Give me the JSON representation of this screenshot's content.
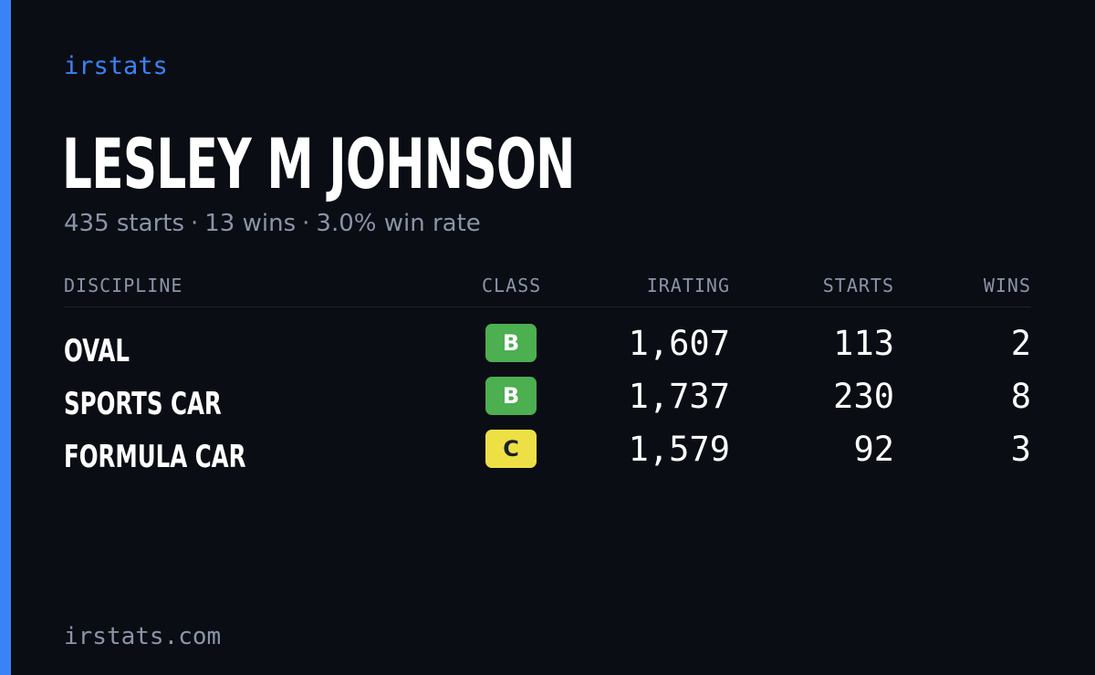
{
  "brand": "irstats",
  "driver": {
    "name": "LESLEY M JOHNSON"
  },
  "summary": {
    "starts": "435 starts",
    "wins": "13 wins",
    "win_rate": "3.0% win rate",
    "separator": "·"
  },
  "table": {
    "headers": {
      "discipline": "DISCIPLINE",
      "class": "CLASS",
      "irating": "IRATING",
      "starts": "STARTS",
      "wins": "WINS"
    },
    "rows": [
      {
        "discipline": "OVAL",
        "class": "B",
        "class_color": "#4caf50",
        "class_text_color": "#ffffff",
        "irating": "1,607",
        "starts": "113",
        "wins": "2"
      },
      {
        "discipline": "SPORTS CAR",
        "class": "B",
        "class_color": "#4caf50",
        "class_text_color": "#ffffff",
        "irating": "1,737",
        "starts": "230",
        "wins": "8"
      },
      {
        "discipline": "FORMULA CAR",
        "class": "C",
        "class_color": "#ede045",
        "class_text_color": "#1c1f26",
        "irating": "1,579",
        "starts": "92",
        "wins": "3"
      }
    ]
  },
  "footer": {
    "url": "irstats.com"
  },
  "colors": {
    "accent": "#3b82f6",
    "background": "#0a0d14",
    "muted_text": "#8b94a7"
  }
}
